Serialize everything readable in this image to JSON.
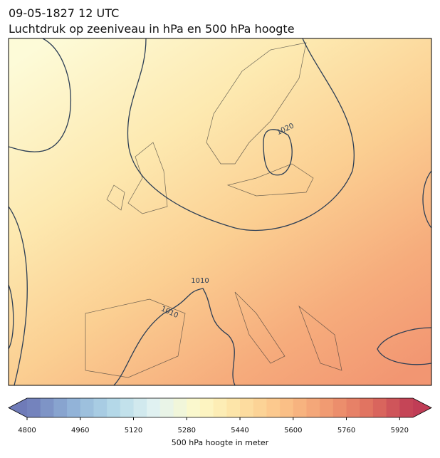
{
  "header": {
    "title": "09-05-1827 12 UTC",
    "subtitle": "Luchtdruk op zeeniveau in hPa en 500 hPa hoogte"
  },
  "map": {
    "contour_labels": [
      "1020",
      "1010",
      "1010"
    ]
  },
  "colorbar": {
    "label": "500 hPa hoogte in meter",
    "range": [
      4800,
      5960
    ],
    "step": 40,
    "ticks": [
      4800,
      4960,
      5120,
      5280,
      5440,
      5600,
      5760,
      5920
    ],
    "colors": [
      "#6f7bb8",
      "#8fb0d6",
      "#b3d8e8",
      "#e2f2f2",
      "#fdf9c8",
      "#fde0a2",
      "#fbc187",
      "#f19a72",
      "#e0705f",
      "#c03d56"
    ]
  }
}
